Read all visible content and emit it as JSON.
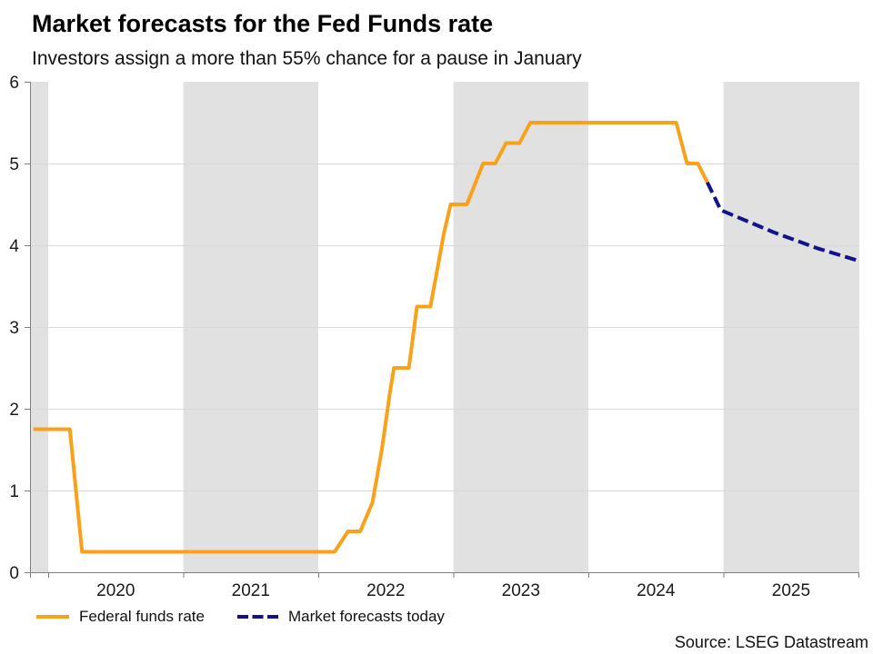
{
  "header": {
    "title": "Market forecasts for the Fed Funds rate",
    "subtitle": "Investors assign a more than 55% chance for a pause in January"
  },
  "source": "Source: LSEG Datastream",
  "legend": [
    {
      "label": "Federal funds rate",
      "color": "#F9A11B",
      "style": "solid"
    },
    {
      "label": "Market forecasts today",
      "color": "#12128C",
      "style": "dashed"
    }
  ],
  "chart_data": {
    "type": "line",
    "title": "Market forecasts for the Fed Funds rate",
    "subtitle": "Investors assign a more than 55% chance for a pause in January",
    "xlabel": "",
    "ylabel": "",
    "grid": "horizontal",
    "legend_position": "bottom-left",
    "x_axis": {
      "range": [
        2019.865,
        2026.006
      ],
      "tick_years": [
        2020,
        2021,
        2022,
        2023,
        2024,
        2025,
        2026
      ],
      "labels": [
        "2020",
        "2021",
        "2022",
        "2023",
        "2024",
        "2025"
      ],
      "label_positions": [
        2020.5,
        2021.5,
        2022.5,
        2023.5,
        2024.5,
        2025.5
      ]
    },
    "y_axis": {
      "range": [
        0,
        6
      ],
      "ticks": [
        0,
        1,
        2,
        3,
        4,
        5,
        6
      ]
    },
    "shaded_bands": [
      [
        2019.865,
        2020.0
      ],
      [
        2021.0,
        2022.0
      ],
      [
        2023.0,
        2024.0
      ],
      [
        2025.0,
        2026.006
      ]
    ],
    "colors": {
      "band": "#E1E1E1",
      "grid": "#D9D9D9",
      "axis": "#7F7F7F"
    },
    "series": [
      {
        "id": "federal-funds-rate",
        "name": "Federal funds rate",
        "color": "#F9A11B",
        "dash": null,
        "points": [
          [
            2019.89,
            1.75
          ],
          [
            2020.16,
            1.75
          ],
          [
            2020.25,
            0.25
          ],
          [
            2022.12,
            0.25
          ],
          [
            2022.22,
            0.5
          ],
          [
            2022.31,
            0.5
          ],
          [
            2022.4,
            0.85
          ],
          [
            2022.47,
            1.5
          ],
          [
            2022.53,
            2.2
          ],
          [
            2022.56,
            2.5
          ],
          [
            2022.67,
            2.5
          ],
          [
            2022.73,
            3.25
          ],
          [
            2022.83,
            3.25
          ],
          [
            2022.88,
            3.7
          ],
          [
            2022.93,
            4.15
          ],
          [
            2022.98,
            4.5
          ],
          [
            2023.1,
            4.5
          ],
          [
            2023.22,
            5.0
          ],
          [
            2023.31,
            5.0
          ],
          [
            2023.39,
            5.25
          ],
          [
            2023.49,
            5.25
          ],
          [
            2023.57,
            5.5
          ],
          [
            2024.65,
            5.5
          ],
          [
            2024.73,
            5.0
          ],
          [
            2024.81,
            5.0
          ],
          [
            2024.88,
            4.77
          ]
        ]
      },
      {
        "id": "market-forecast",
        "name": "Market forecasts today",
        "color": "#12128C",
        "dash": [
          12.5,
          5.5
        ],
        "points": [
          [
            2024.88,
            4.77
          ],
          [
            2024.98,
            4.43
          ],
          [
            2025.37,
            4.16
          ],
          [
            2025.7,
            3.96
          ],
          [
            2026.0,
            3.81
          ]
        ]
      }
    ]
  }
}
